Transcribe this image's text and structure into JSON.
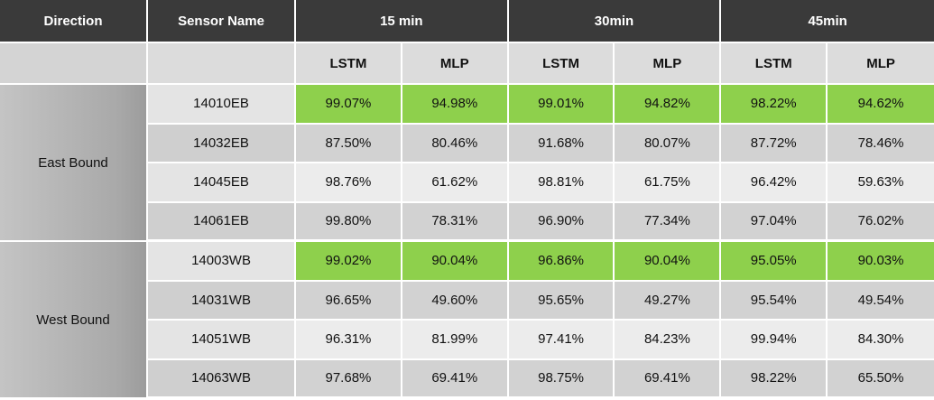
{
  "chart_data": {
    "type": "table",
    "columns": {
      "direction": "Direction",
      "sensor": "Sensor Name",
      "horizons": [
        "15 min",
        "30min",
        "45min"
      ],
      "models": [
        "LSTM",
        "MLP"
      ]
    },
    "groups": [
      {
        "direction": "East Bound",
        "rows": [
          {
            "sensor": "14010EB",
            "values": [
              "99.07%",
              "94.98%",
              "99.01%",
              "94.82%",
              "98.22%",
              "94.62%"
            ],
            "highlight": true
          },
          {
            "sensor": "14032EB",
            "values": [
              "87.50%",
              "80.46%",
              "91.68%",
              "80.07%",
              "87.72%",
              "78.46%"
            ],
            "highlight": false
          },
          {
            "sensor": "14045EB",
            "values": [
              "98.76%",
              "61.62%",
              "98.81%",
              "61.75%",
              "96.42%",
              "59.63%"
            ],
            "highlight": false
          },
          {
            "sensor": "14061EB",
            "values": [
              "99.80%",
              "78.31%",
              "96.90%",
              "77.34%",
              "97.04%",
              "76.02%"
            ],
            "highlight": false
          }
        ]
      },
      {
        "direction": "West Bound",
        "rows": [
          {
            "sensor": "14003WB",
            "values": [
              "99.02%",
              "90.04%",
              "96.86%",
              "90.04%",
              "95.05%",
              "90.03%"
            ],
            "highlight": true
          },
          {
            "sensor": "14031WB",
            "values": [
              "96.65%",
              "49.60%",
              "95.65%",
              "49.27%",
              "95.54%",
              "49.54%"
            ],
            "highlight": false
          },
          {
            "sensor": "14051WB",
            "values": [
              "96.31%",
              "81.99%",
              "97.41%",
              "84.23%",
              "99.94%",
              "84.30%"
            ],
            "highlight": false
          },
          {
            "sensor": "14063WB",
            "values": [
              "97.68%",
              "69.41%",
              "98.75%",
              "69.41%",
              "98.22%",
              "65.50%"
            ],
            "highlight": false
          }
        ]
      }
    ],
    "colors": {
      "header": "#3a3a3a",
      "highlight": "#8ed04c"
    }
  }
}
